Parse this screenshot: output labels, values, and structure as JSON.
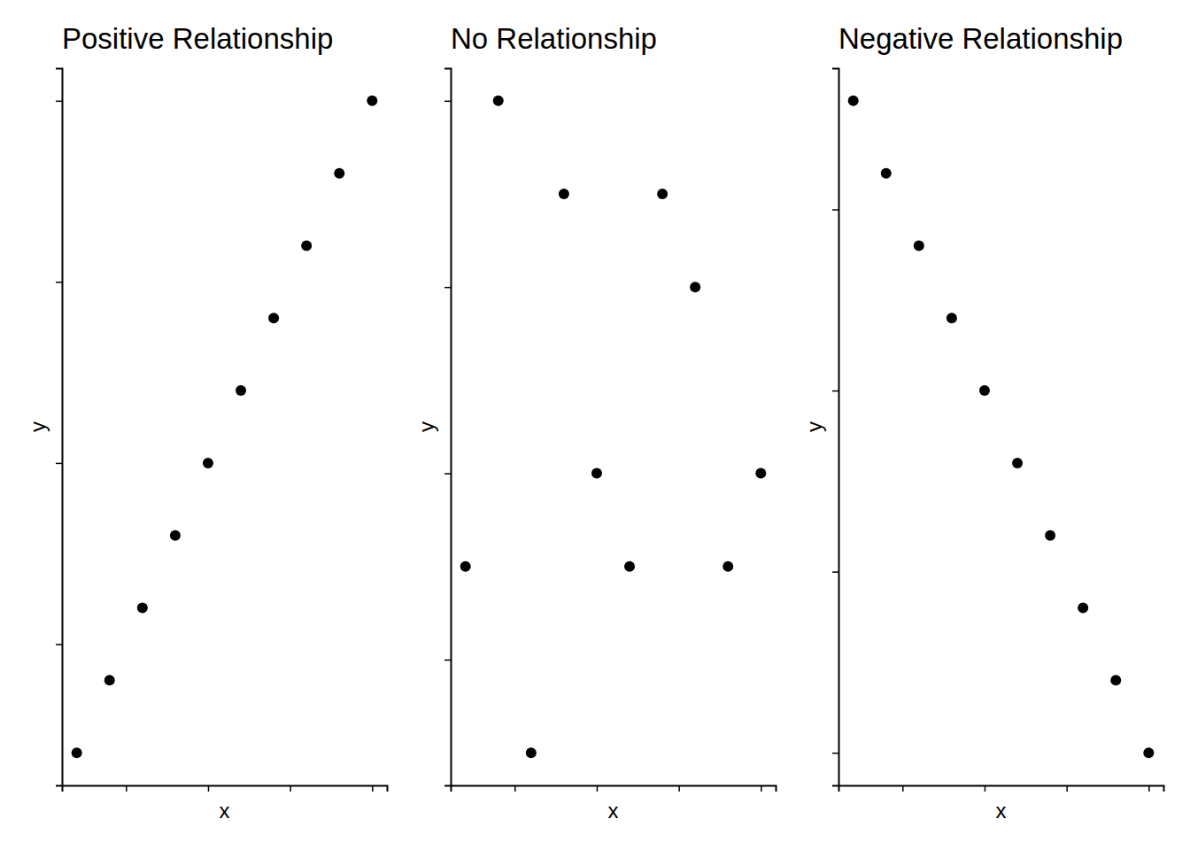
{
  "chart_data": [
    {
      "type": "scatter",
      "title": "Positive Relationship",
      "x_label": "x",
      "y_label": "y",
      "x": [
        1,
        2,
        3,
        4,
        5,
        6,
        7,
        8,
        9,
        10
      ],
      "values": [
        1,
        2,
        3,
        4,
        5,
        6,
        7,
        8,
        9,
        10
      ],
      "color": "#000000",
      "marker": "circle",
      "xlim": [
        0.55,
        10.45
      ],
      "xticks": [
        2.5,
        5,
        7.5,
        10
      ],
      "ylim": [
        0.55,
        10.45
      ],
      "yticks": [
        2.5,
        5,
        7.5,
        10
      ],
      "grid": false,
      "tick_labels": false
    },
    {
      "type": "scatter",
      "title": "No Relationship",
      "x_label": "x",
      "y_label": "y",
      "x": [
        1,
        2,
        3,
        4,
        5,
        6,
        7,
        8,
        9,
        10
      ],
      "values": [
        3,
        8,
        1,
        7,
        4,
        3,
        7,
        6,
        3,
        4
      ],
      "color": "#000000",
      "marker": "circle",
      "xlim": [
        0.55,
        10.45
      ],
      "xticks": [
        2.5,
        5,
        7.5,
        10
      ],
      "ylim": [
        0.65,
        8.35
      ],
      "yticks": [
        2,
        4,
        6,
        8
      ],
      "grid": false,
      "tick_labels": false
    },
    {
      "type": "scatter",
      "title": "Negative Relationship",
      "x_label": "x",
      "y_label": "y",
      "x": [
        1,
        2,
        3,
        4,
        5,
        6,
        7,
        8,
        9,
        10
      ],
      "values": [
        -1,
        -2,
        -3,
        -4,
        -5,
        -6,
        -7,
        -8,
        -9,
        -10
      ],
      "color": "#000000",
      "marker": "circle",
      "xlim": [
        0.55,
        10.45
      ],
      "xticks": [
        2.5,
        5,
        7.5,
        10
      ],
      "ylim": [
        -10.45,
        -0.55
      ],
      "yticks": [
        -10,
        -7.5,
        -5,
        -2.5
      ],
      "grid": false,
      "tick_labels": false
    }
  ]
}
